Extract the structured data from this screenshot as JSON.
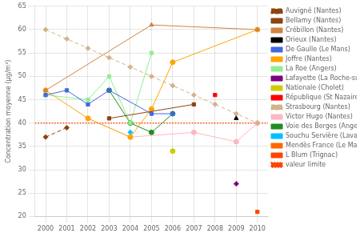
{
  "chart_data": {
    "type": "line",
    "ylabel": "Concentration moyenne (µg/m³)",
    "xlim": [
      1999.5,
      2010.5
    ],
    "xticks": [
      2000,
      2001,
      2002,
      2003,
      2004,
      2005,
      2006,
      2007,
      2008,
      2009,
      2010
    ],
    "ylim": [
      20,
      65
    ],
    "yticks": [
      20,
      25,
      30,
      35,
      40,
      45,
      50,
      55,
      60,
      65
    ],
    "grid": true,
    "legend": "right",
    "series": [
      {
        "name": "Auvigné (Nantes)",
        "color": "#8B4513",
        "line_style": "dashed",
        "marker": "diamond",
        "x": [
          2000,
          2001
        ],
        "values": [
          37,
          39
        ]
      },
      {
        "name": "Bellamy (Nantes)",
        "color": "#8B4513",
        "line_style": "solid",
        "marker": "square",
        "x": [
          2003,
          2007
        ],
        "values": [
          41,
          44
        ]
      },
      {
        "name": "Crébillon (Nantes)",
        "color": "#CD853F",
        "line_style": "solid",
        "marker": "triangle",
        "x": [
          2000,
          2005,
          2010
        ],
        "values": [
          47,
          61,
          60
        ]
      },
      {
        "name": "Orieux (Nantes)",
        "color": "#000000",
        "line_style": "solid",
        "marker": "triangle",
        "x": [
          2009
        ],
        "values": [
          41
        ]
      },
      {
        "name": "De Gaulle (Le Mans)",
        "color": "#4169E1",
        "line_style": "solid",
        "marker": "square",
        "x": [
          2000,
          2001,
          2002,
          2003,
          2005,
          2006
        ],
        "values": [
          46,
          47,
          44,
          47,
          42,
          42
        ]
      },
      {
        "name": "Joffre (Nantes)",
        "color": "#FFA500",
        "line_style": "solid",
        "marker": "circle",
        "x": [
          2000,
          2002,
          2004,
          2005,
          2006,
          2010
        ],
        "values": [
          47,
          41,
          37,
          43,
          53,
          60
        ]
      },
      {
        "name": "La Roe (Angers)",
        "color": "#90EE90",
        "line_style": "solid",
        "marker": "square",
        "x": [
          2000,
          2002,
          2003,
          2004,
          2005
        ],
        "values": [
          46,
          45,
          50,
          40,
          55
        ]
      },
      {
        "name": "Lafayette (La Roche-sur-Yon)",
        "color": "#800080",
        "line_style": "solid",
        "marker": "diamond",
        "x": [
          2009
        ],
        "values": [
          27
        ]
      },
      {
        "name": "Nationale (Cholet)",
        "color": "#CCCC00",
        "line_style": "solid",
        "marker": "circle",
        "x": [
          2006
        ],
        "values": [
          34
        ]
      },
      {
        "name": "République (St Nazaire)",
        "color": "#FF0000",
        "line_style": "solid",
        "marker": "square",
        "x": [
          2008
        ],
        "values": [
          46
        ]
      },
      {
        "name": "Strasbourg (Nantes)",
        "color": "#D2B48C",
        "line_style": "dashed",
        "marker": "diamond",
        "x": [
          2000,
          2001,
          2002,
          2003,
          2004,
          2005,
          2006,
          2007,
          2008,
          2009,
          2010
        ],
        "values": [
          60,
          58,
          56,
          54,
          52,
          50,
          48,
          46,
          44,
          42,
          40
        ]
      },
      {
        "name": "Victor Hugo (Nantes)",
        "color": "#FFB6C1",
        "line_style": "solid",
        "marker": "circle",
        "x": [
          2002,
          2004,
          2007,
          2009,
          2010
        ],
        "values": [
          41,
          37,
          38,
          36,
          40
        ]
      },
      {
        "name": "Voie des Berges (Angers)",
        "color": "#228B22",
        "line_style": "solid",
        "marker": "circle",
        "x": [
          2003,
          2004,
          2005,
          2006
        ],
        "values": [
          47,
          40,
          38,
          42
        ]
      },
      {
        "name": "Souchu Servière (Laval)",
        "color": "#00BFFF",
        "line_style": "solid",
        "marker": "diamond",
        "x": [
          2004
        ],
        "values": [
          38
        ]
      },
      {
        "name": "Mendès France (Le Mans)",
        "color": "#FF6600",
        "line_style": "none",
        "marker": "plus",
        "x": [],
        "values": []
      },
      {
        "name": "L Blum (Trignac)",
        "color": "#FF4500",
        "line_style": "none",
        "marker": "square",
        "x": [
          2010
        ],
        "values": [
          21
        ]
      },
      {
        "name": "valeur limite",
        "type": "hline",
        "color": "#FF4500",
        "line_style": "dotted",
        "values": [
          40
        ]
      }
    ]
  }
}
